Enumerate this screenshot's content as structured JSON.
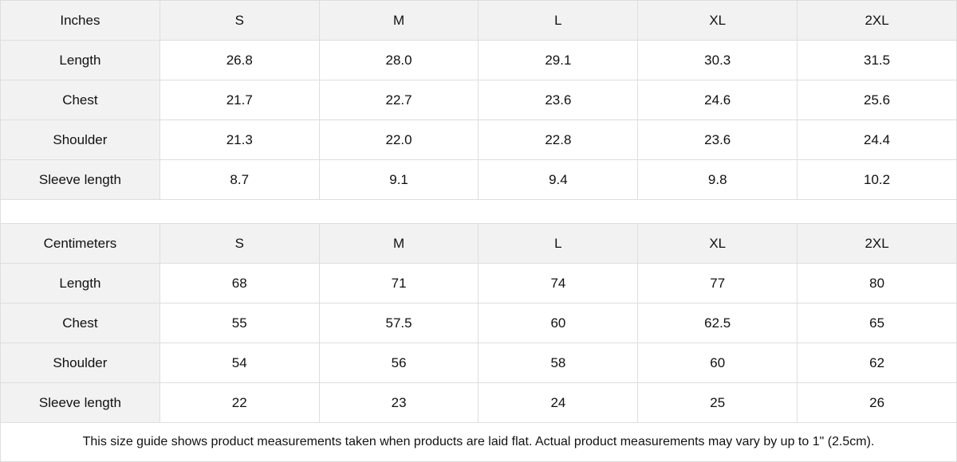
{
  "inches": {
    "header": [
      "Inches",
      "S",
      "M",
      "L",
      "XL",
      "2XL"
    ],
    "rows": [
      [
        "Length",
        "26.8",
        "28.0",
        "29.1",
        "30.3",
        "31.5"
      ],
      [
        "Chest",
        "21.7",
        "22.7",
        "23.6",
        "24.6",
        "25.6"
      ],
      [
        "Shoulder",
        "21.3",
        "22.0",
        "22.8",
        "23.6",
        "24.4"
      ],
      [
        "Sleeve length",
        "8.7",
        "9.1",
        "9.4",
        "9.8",
        "10.2"
      ]
    ]
  },
  "centimeters": {
    "header": [
      "Centimeters",
      "S",
      "M",
      "L",
      "XL",
      "2XL"
    ],
    "rows": [
      [
        "Length",
        "68",
        "71",
        "74",
        "77",
        "80"
      ],
      [
        "Chest",
        "55",
        "57.5",
        "60",
        "62.5",
        "65"
      ],
      [
        "Shoulder",
        "54",
        "56",
        "58",
        "60",
        "62"
      ],
      [
        "Sleeve length",
        "22",
        "23",
        "24",
        "25",
        "26"
      ]
    ]
  },
  "note": "This size guide shows product measurements taken when products are laid flat.  Actual product measurements may vary by up to 1\" (2.5cm).",
  "colors": {
    "header_bg": "#f2f2f2",
    "border": "#dedede"
  }
}
